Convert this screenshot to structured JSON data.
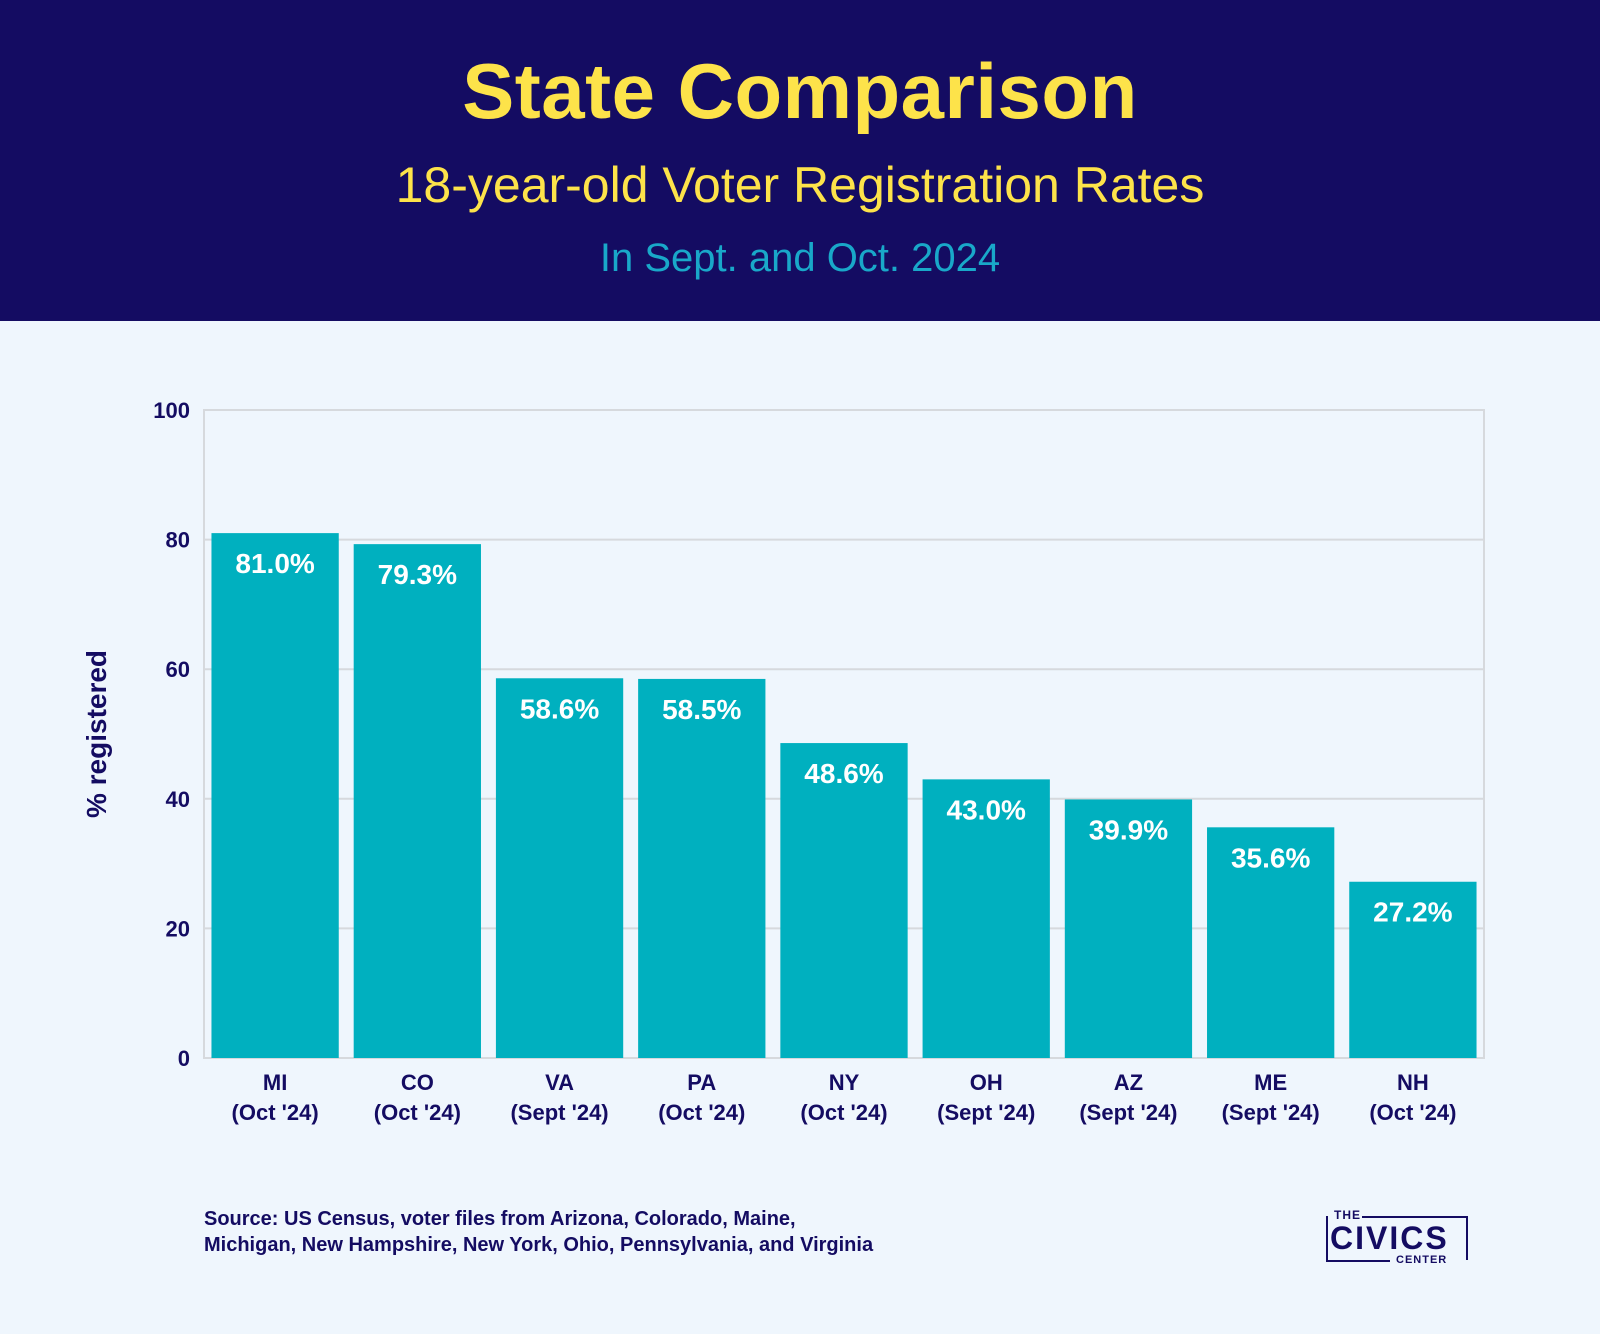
{
  "header": {
    "title": "State Comparison",
    "subtitle": "18-year-old Voter Registration Rates",
    "period": "In Sept. and Oct. 2024"
  },
  "colors": {
    "header_bg": "#140c62",
    "title": "#fde34a",
    "period": "#19a8c9",
    "bar": "#00b0bf",
    "background": "#eff6fd",
    "grid": "#d6d9dd",
    "axis_text": "#140c62"
  },
  "chart_data": {
    "type": "bar",
    "categories": [
      "MI",
      "CO",
      "VA",
      "PA",
      "NY",
      "OH",
      "AZ",
      "ME",
      "NH"
    ],
    "category_periods": [
      "(Oct '24)",
      "(Oct '24)",
      "(Sept '24)",
      "(Oct '24)",
      "(Oct '24)",
      "(Sept '24)",
      "(Sept '24)",
      "(Sept '24)",
      "(Oct '24)"
    ],
    "values": [
      81.0,
      79.3,
      58.6,
      58.5,
      48.6,
      43.0,
      39.9,
      35.6,
      27.2
    ],
    "data_labels": [
      "81.0%",
      "79.3%",
      "58.6%",
      "58.5%",
      "48.6%",
      "43.0%",
      "39.9%",
      "35.6%",
      "27.2%"
    ],
    "ylabel": "% registered",
    "xlabel": "",
    "ylim": [
      0,
      100
    ],
    "yticks": [
      0,
      20,
      40,
      60,
      80,
      100
    ],
    "grid": true,
    "legend": "none"
  },
  "footer": {
    "source_line1": "Source: US Census, voter files from Arizona, Colorado, Maine,",
    "source_line2": "Michigan, New Hampshire, New York, Ohio, Pennsylvania, and Virginia",
    "logo_the": "THE",
    "logo_civics": "CIVICS",
    "logo_center": "CENTER"
  }
}
